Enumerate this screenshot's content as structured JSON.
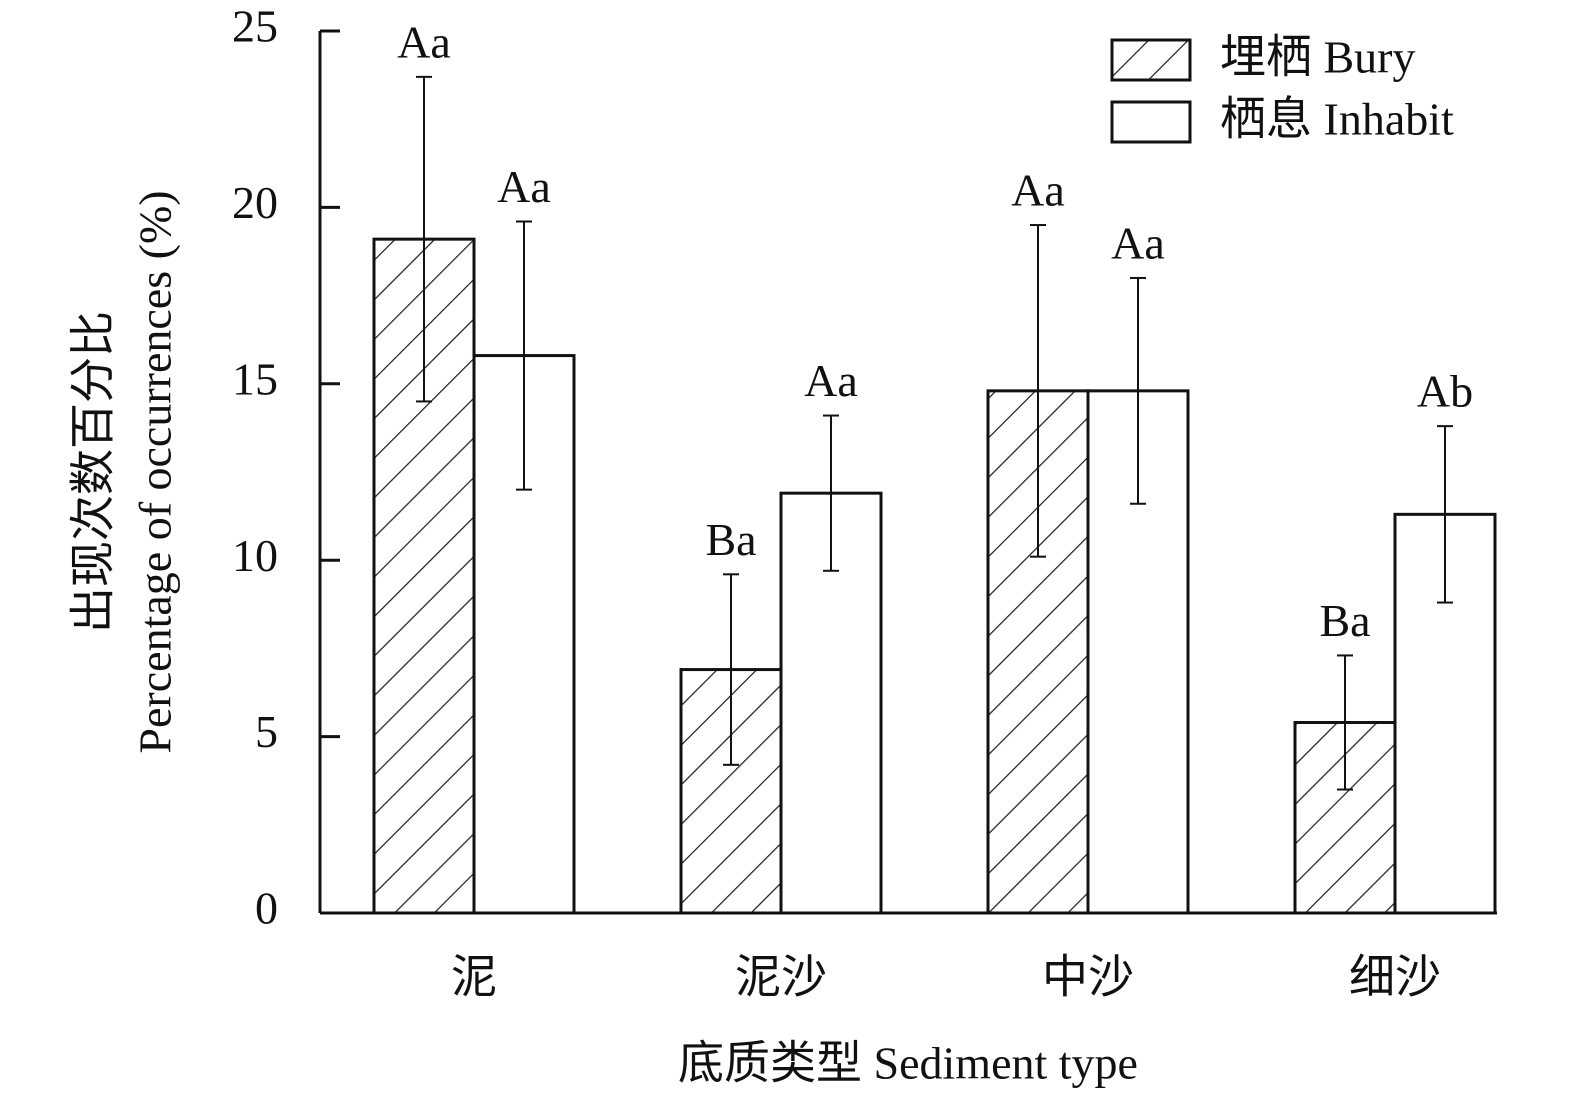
{
  "chart_data": {
    "type": "bar",
    "x_label": "底质类型 Sediment type",
    "y_label": [
      "出现次数百分比",
      "Percentage of occurrences (%)"
    ],
    "categories": [
      "泥",
      "泥沙",
      "中沙",
      "细沙"
    ],
    "series": [
      {
        "name": "埋栖 Bury",
        "color": "#ffffff",
        "hatch": true,
        "values": [
          19.1,
          6.9,
          14.8,
          5.4
        ],
        "errors": [
          4.6,
          2.7,
          4.7,
          1.9
        ],
        "letters": [
          "Aa",
          "Ba",
          "Aa",
          "Ba"
        ]
      },
      {
        "name": "栖息 Inhabit",
        "color": "#ffffff",
        "hatch": false,
        "values": [
          15.8,
          11.9,
          14.8,
          11.3
        ],
        "errors": [
          3.8,
          2.2,
          3.2,
          2.5
        ],
        "letters": [
          "Aa",
          "Aa",
          "Aa",
          "Ab"
        ]
      }
    ],
    "ylim": [
      0,
      25
    ],
    "yticks": [
      0,
      5,
      10,
      15,
      20,
      25
    ],
    "legend": "top-right"
  }
}
